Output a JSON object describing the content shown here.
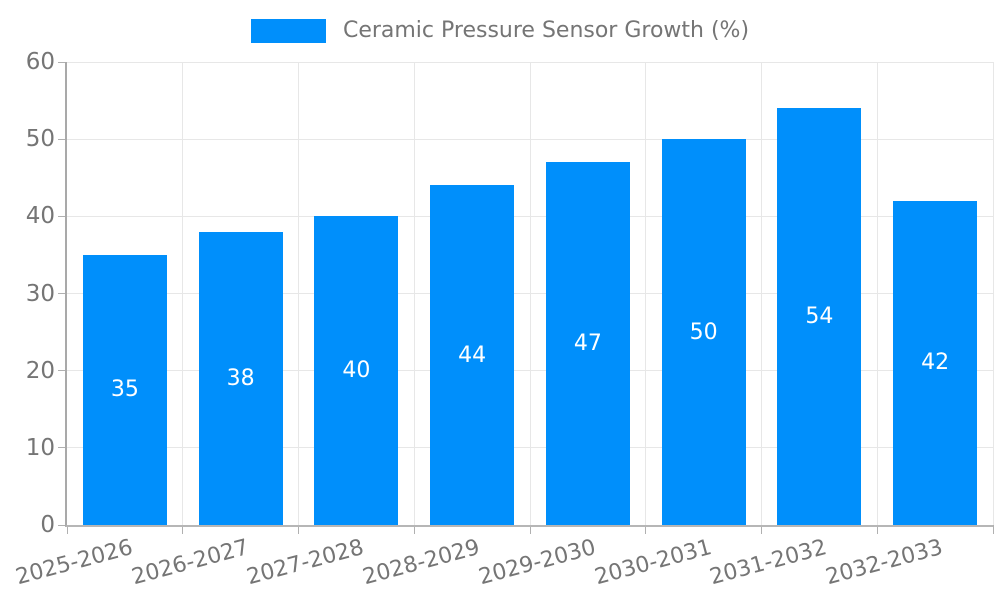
{
  "colors": {
    "bar": "#008FFB",
    "bar_label": "#ffffff",
    "grid": "#e7e7e7",
    "axis": "#a9a9a9",
    "tick": "#b0b0b0",
    "text": "#757575"
  },
  "chart_data": {
    "type": "bar",
    "title": "",
    "xlabel": "",
    "ylabel": "",
    "categories": [
      "2025-2026",
      "2026-2027",
      "2027-2028",
      "2028-2029",
      "2029-2030",
      "2030-2031",
      "2031-2032",
      "2032-2033"
    ],
    "values": [
      35,
      38,
      40,
      44,
      47,
      50,
      54,
      42
    ],
    "bar_labels": [
      35,
      38,
      40,
      44,
      47,
      50,
      54,
      42
    ],
    "ylim": [
      0,
      60
    ],
    "yticks": [
      0,
      10,
      20,
      30,
      40,
      50,
      60
    ],
    "legend": [
      "Ceramic Pressure Sensor Growth (%)"
    ],
    "legend_position": "top-center",
    "grid": true,
    "bar_color": "#008FFB"
  }
}
